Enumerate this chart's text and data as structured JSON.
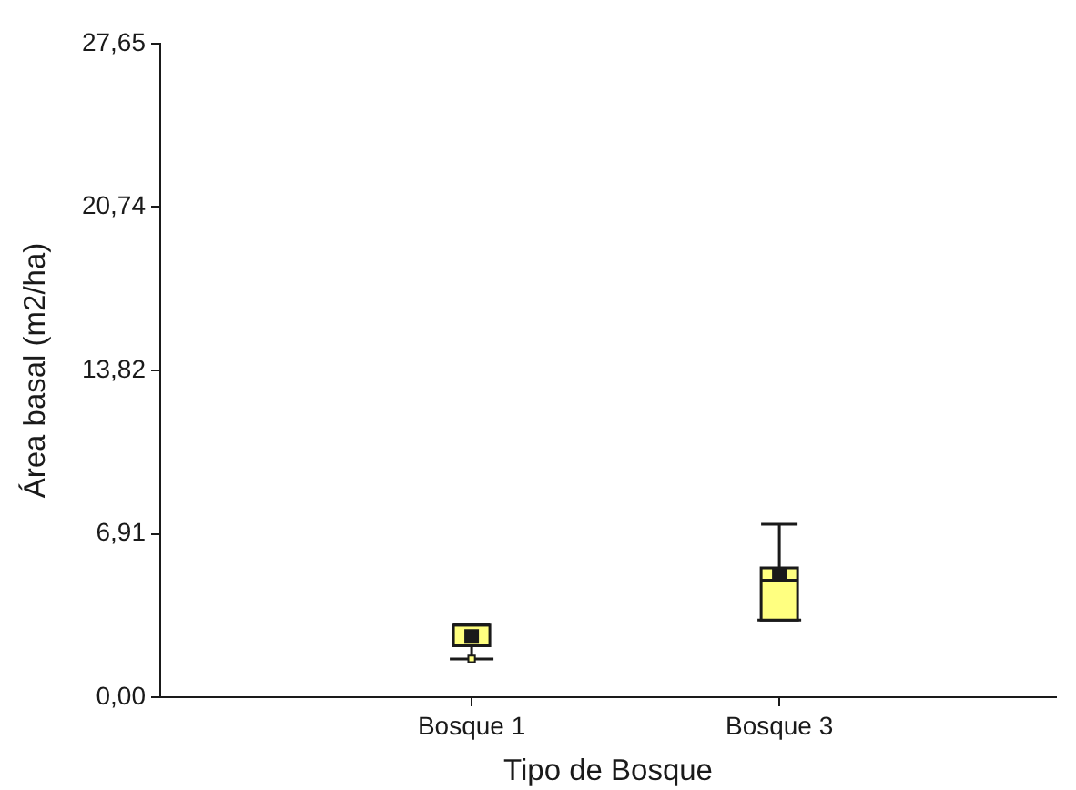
{
  "chart_data": {
    "type": "box",
    "xlabel": "Tipo de Bosque",
    "ylabel": "Área basal (m2/ha)",
    "categories": [
      "Bosque 1",
      "Bosque 3"
    ],
    "color": "#ffff80",
    "marker": "square",
    "boxes": [
      {
        "low": 1.62,
        "q1": 2.18,
        "median": 3.05,
        "q3": 3.05,
        "high": 3.05,
        "mean": 2.57,
        "outliers": [
          1.62
        ]
      },
      {
        "low": 3.26,
        "q1": 3.26,
        "median": 4.95,
        "q3": 5.47,
        "high": 7.32,
        "mean": 5.17
      }
    ],
    "ylim": [
      0,
      27.65
    ],
    "yticks": [
      {
        "value": 0,
        "label": "0,00"
      },
      {
        "value": 6.91,
        "label": "6,91"
      },
      {
        "value": 13.82,
        "label": "13,82"
      },
      {
        "value": 20.74,
        "label": "20,74"
      },
      {
        "value": 27.65,
        "label": "27,65"
      }
    ]
  }
}
